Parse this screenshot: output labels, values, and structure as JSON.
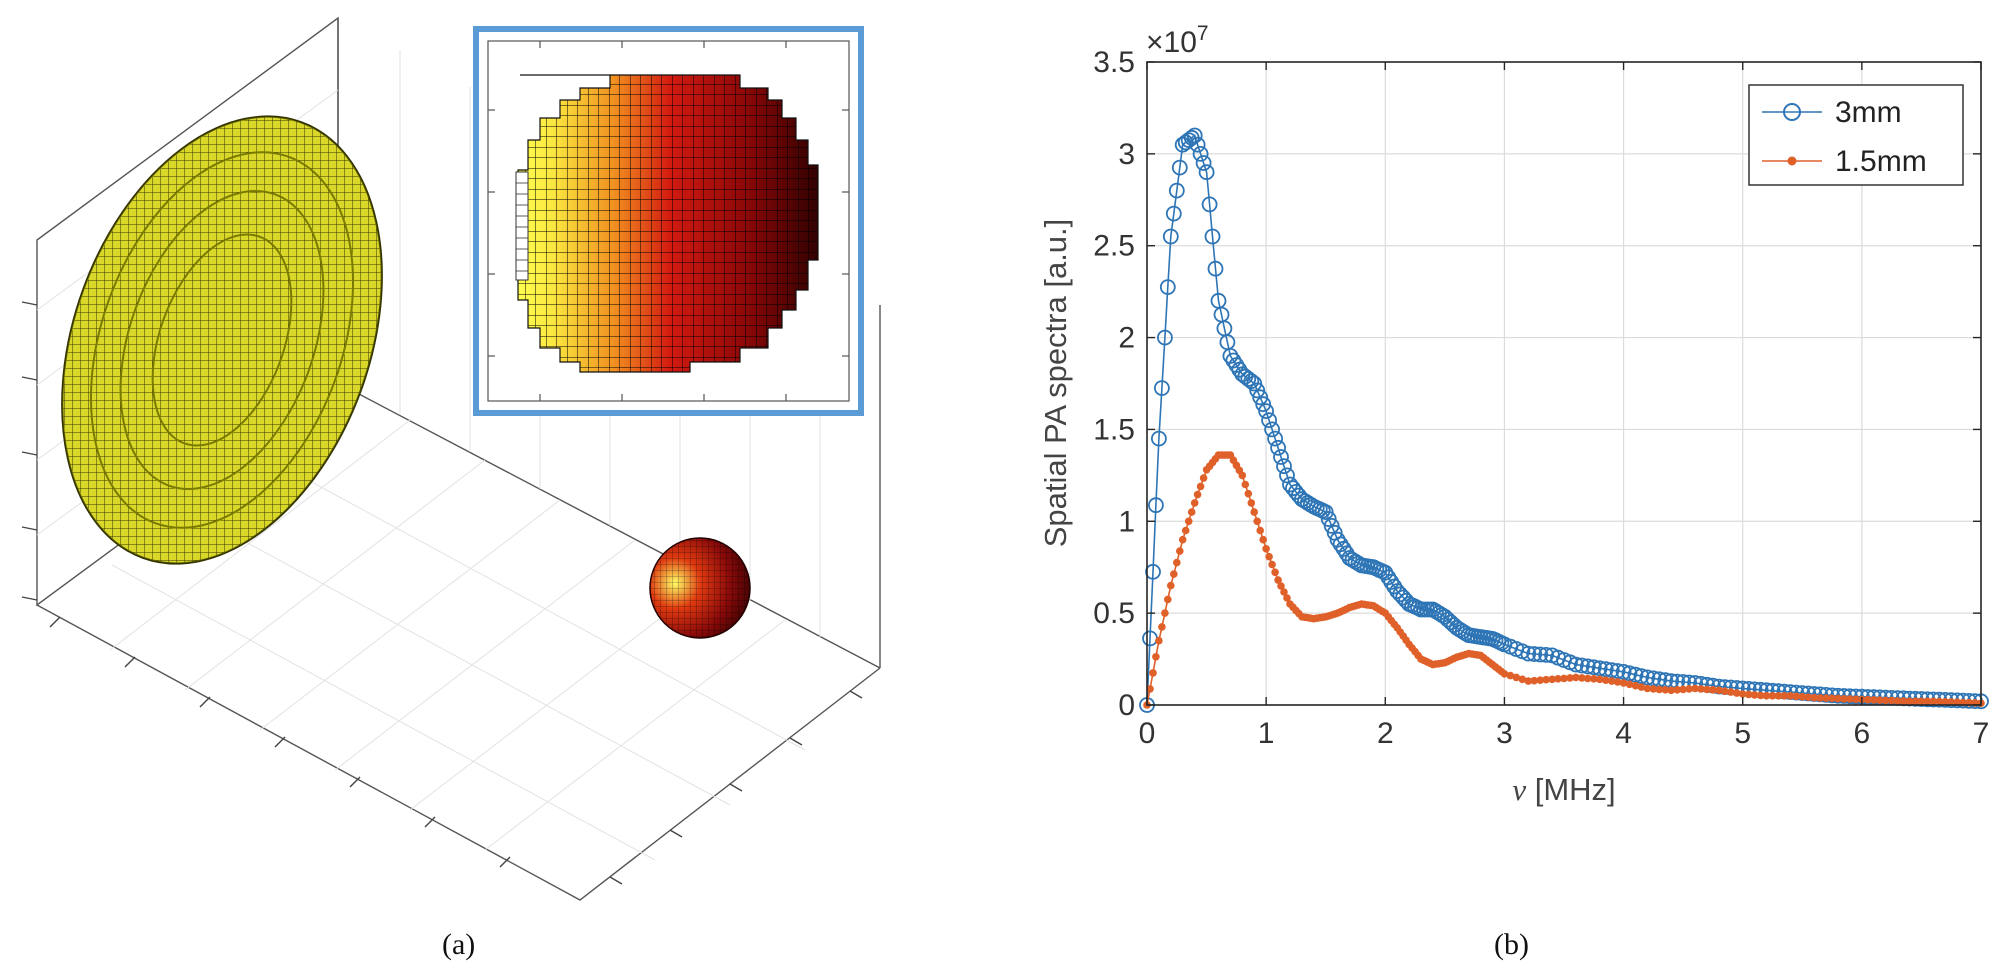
{
  "panels": {
    "a": {
      "caption": "(a)",
      "colors": {
        "disk": "#d9d72a",
        "disk_edge": "#222200",
        "inset_border": "#5b9bd5",
        "sphere_light": "#ffff66",
        "sphere_mid": "#d01010",
        "sphere_dark": "#2a0000"
      }
    },
    "b": {
      "caption": "(b)"
    }
  },
  "chart_data": {
    "type": "line",
    "title": "",
    "xlabel_symbol": "ν",
    "xlabel_unit": "[MHz]",
    "ylabel": "Spatial PA spectra [a.u.]",
    "y_exponent_label": "×10",
    "y_exponent_power": "7",
    "xlim": [
      0,
      7
    ],
    "ylim": [
      0,
      3.5
    ],
    "x_ticks": [
      "0",
      "1",
      "2",
      "3",
      "4",
      "5",
      "6",
      "7"
    ],
    "y_ticks": [
      "0",
      "0.5",
      "1",
      "1.5",
      "2",
      "2.5",
      "3",
      "3.5"
    ],
    "grid": true,
    "legend_position": "top-right",
    "series": [
      {
        "name": "3mm",
        "color": "#2e75b6",
        "marker": "circle-open",
        "x": [
          0,
          0.1,
          0.2,
          0.3,
          0.4,
          0.5,
          0.6,
          0.7,
          0.8,
          0.9,
          1.0,
          1.1,
          1.2,
          1.3,
          1.4,
          1.5,
          1.6,
          1.7,
          1.8,
          1.9,
          2.0,
          2.1,
          2.2,
          2.3,
          2.4,
          2.5,
          2.6,
          2.7,
          2.8,
          2.9,
          3.0,
          3.2,
          3.4,
          3.6,
          3.8,
          4.0,
          4.2,
          4.4,
          4.6,
          4.8,
          5.0,
          5.2,
          5.4,
          5.6,
          5.8,
          6.0,
          6.2,
          6.4,
          6.6,
          6.8,
          7.0
        ],
        "y": [
          0,
          1.45,
          2.55,
          3.05,
          3.1,
          2.9,
          2.2,
          1.9,
          1.8,
          1.75,
          1.6,
          1.4,
          1.2,
          1.12,
          1.08,
          1.05,
          0.9,
          0.8,
          0.76,
          0.75,
          0.72,
          0.62,
          0.55,
          0.52,
          0.52,
          0.48,
          0.42,
          0.38,
          0.37,
          0.36,
          0.33,
          0.28,
          0.27,
          0.22,
          0.2,
          0.18,
          0.15,
          0.13,
          0.12,
          0.1,
          0.09,
          0.08,
          0.07,
          0.06,
          0.05,
          0.045,
          0.04,
          0.035,
          0.03,
          0.025,
          0.02
        ]
      },
      {
        "name": "1.5mm",
        "color": "#e0602a",
        "marker": "dot",
        "x": [
          0,
          0.1,
          0.2,
          0.3,
          0.4,
          0.5,
          0.6,
          0.7,
          0.8,
          0.9,
          1.0,
          1.1,
          1.2,
          1.3,
          1.4,
          1.5,
          1.6,
          1.7,
          1.8,
          1.9,
          2.0,
          2.1,
          2.2,
          2.3,
          2.4,
          2.5,
          2.6,
          2.7,
          2.8,
          2.9,
          3.0,
          3.2,
          3.4,
          3.6,
          3.8,
          4.0,
          4.2,
          4.4,
          4.6,
          4.8,
          5.0,
          5.2,
          5.4,
          5.6,
          5.8,
          6.0,
          6.2,
          6.4,
          6.6,
          6.8,
          7.0
        ],
        "y": [
          0,
          0.35,
          0.65,
          0.9,
          1.1,
          1.28,
          1.36,
          1.36,
          1.25,
          1.05,
          0.85,
          0.68,
          0.55,
          0.48,
          0.47,
          0.48,
          0.5,
          0.53,
          0.55,
          0.54,
          0.5,
          0.42,
          0.33,
          0.25,
          0.22,
          0.23,
          0.26,
          0.28,
          0.27,
          0.22,
          0.17,
          0.13,
          0.14,
          0.15,
          0.14,
          0.12,
          0.09,
          0.08,
          0.09,
          0.08,
          0.06,
          0.05,
          0.05,
          0.04,
          0.035,
          0.03,
          0.025,
          0.02,
          0.02,
          0.015,
          0.01
        ]
      }
    ]
  }
}
